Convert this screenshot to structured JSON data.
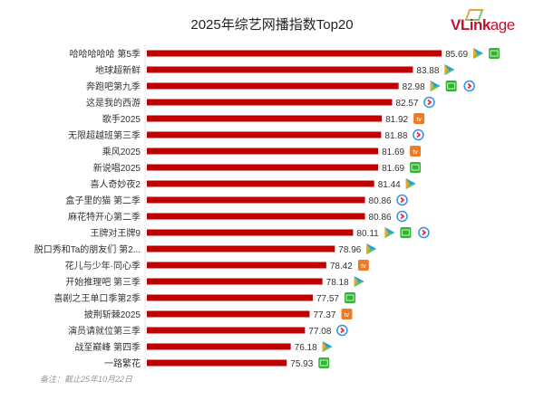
{
  "chart_data": {
    "type": "bar",
    "orientation": "horizontal",
    "title": "2025年综艺网播指数Top20",
    "xlim": [
      67,
      86
    ],
    "grid": false,
    "bar_color": "#c00000",
    "platform_colors": {
      "tencent": "#1aa3e8",
      "iqiyi": "#32b432",
      "youku": "#2f8fe8",
      "mango": "#f07a22"
    },
    "categories": [
      "哈哈哈哈哈 第5季",
      "地球超新鲜",
      "奔跑吧第九季",
      "这是我的西游",
      "歌手2025",
      "无限超越班第三季",
      "乘风2025",
      "新说唱2025",
      "喜人奇妙夜2",
      "盒子里的猫 第二季",
      "麻花特开心第二季",
      "王牌对王牌9",
      "脱口秀和Ta的朋友们 第2...",
      "花儿与少年·同心季",
      "开始推理吧 第三季",
      "喜剧之王单口季第2季",
      "披荆斩棘2025",
      "演员请就位第三季",
      "战至巅峰 第四季",
      "一路繁花"
    ],
    "values": [
      85.69,
      83.88,
      82.98,
      82.57,
      81.92,
      81.88,
      81.69,
      81.69,
      81.44,
      80.86,
      80.86,
      80.11,
      78.96,
      78.42,
      78.18,
      77.57,
      77.37,
      77.08,
      76.18,
      75.93
    ],
    "labels": [
      "85.69",
      "83.88",
      "82.98",
      "82.57",
      "81.92",
      "81.88",
      "81.69",
      "81.69",
      "81.44",
      "80.86",
      "80.86",
      "80.11",
      "78.96",
      "78.42",
      "78.18",
      "77.57",
      "77.37",
      "77.08",
      "76.18",
      "75.93"
    ],
    "platforms": [
      [
        "tencent",
        "iqiyi"
      ],
      [
        "tencent"
      ],
      [
        "tencent",
        "iqiyi",
        "youku"
      ],
      [
        "youku"
      ],
      [
        "mango"
      ],
      [
        "youku"
      ],
      [
        "mango"
      ],
      [
        "iqiyi"
      ],
      [
        "tencent"
      ],
      [
        "youku"
      ],
      [
        "youku"
      ],
      [
        "tencent",
        "iqiyi",
        "youku"
      ],
      [
        "tencent"
      ],
      [
        "mango"
      ],
      [
        "tencent"
      ],
      [
        "iqiyi"
      ],
      [
        "mango"
      ],
      [
        "youku"
      ],
      [
        "tencent"
      ],
      [
        "iqiyi"
      ]
    ]
  },
  "logo": {
    "text_bold": "VLink",
    "text_light": "age"
  },
  "note": "备注：截止25年10月22日"
}
